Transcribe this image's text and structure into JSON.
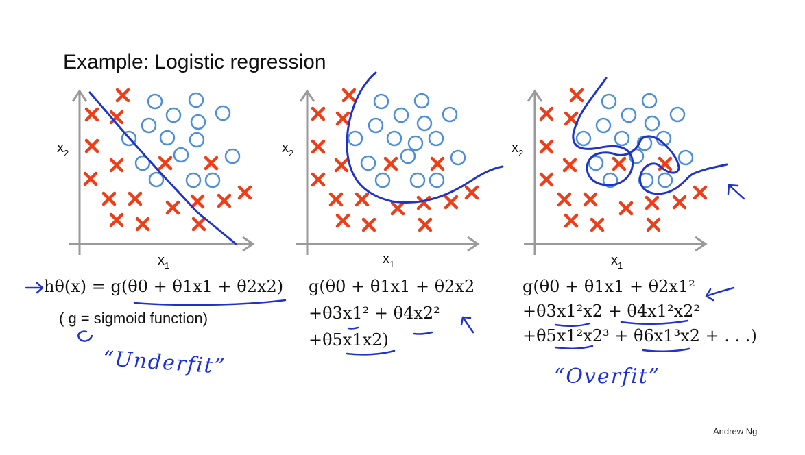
{
  "title": "Example: Logistic regression",
  "credit": "Andrew Ng",
  "axis_labels": {
    "x": "x",
    "x_sub": "1",
    "y": "x",
    "y_sub": "2"
  },
  "panels": [
    {
      "formula_lines": [
        "g(θ0 + θ1x1 + θ2x2)"
      ],
      "hypothesis_prefix": "hθ(x) =",
      "note": "( g = sigmoid function)",
      "handwritten_label": "“Underfit”"
    },
    {
      "formula_lines": [
        "g(θ0 + θ1x1 + θ2x2",
        "+θ3x1² + θ4x2²",
        "+θ5x1x2)"
      ]
    },
    {
      "formula_lines": [
        "g(θ0 + θ1x1 + θ2x1²",
        "+θ3x1²x2 + θ4x1²x2²",
        "+θ5x1²x2³ + θ6x1³x2 + . . .)"
      ],
      "handwritten_label": "“Overfit”"
    }
  ],
  "colors": {
    "x_mark": "#ee3d17",
    "o_mark": "#4d8fd6",
    "ink": "#1f33c9",
    "axis": "#9a9a9a"
  }
}
